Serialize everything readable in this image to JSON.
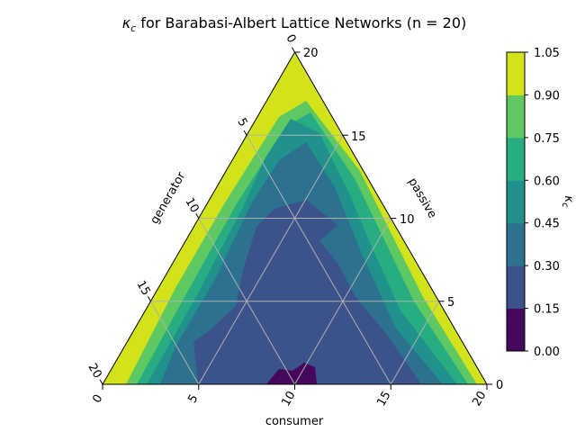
{
  "chart_data": {
    "type": "ternary-contour",
    "title": "κc for Barabasi-Albert Lattice Networks (n = 20)",
    "title_kappa": "κ",
    "title_sub": "c",
    "title_rest": " for Barabasi-Albert Lattice Networks (n = 20)",
    "n": 20,
    "axes": {
      "bottom": {
        "label": "consumer",
        "ticks": [
          "0",
          "5",
          "10",
          "15",
          "20"
        ]
      },
      "right": {
        "label": "passive",
        "ticks": [
          "0",
          "5",
          "10",
          "15",
          "20"
        ]
      },
      "left": {
        "label": "generator",
        "ticks": [
          "0",
          "5",
          "10",
          "15",
          "20"
        ]
      }
    },
    "grid": true,
    "colorbar": {
      "label": "κc",
      "label_kappa": "κ",
      "label_sub": "c",
      "levels": [
        0.0,
        0.15,
        0.3,
        0.45,
        0.6,
        0.75,
        0.9,
        1.05
      ],
      "tick_labels": [
        "0.00",
        "0.15",
        "0.30",
        "0.45",
        "0.60",
        "0.75",
        "0.90",
        "1.05"
      ],
      "colors": [
        "#46085c",
        "#3b528b",
        "#2c718e",
        "#21918c",
        "#27ad81",
        "#5ec962",
        "#d2e21b"
      ]
    },
    "region_levels": [
      {
        "level_index": 6,
        "description": "outer band near edges, κc 0.90–1.05"
      },
      {
        "level_index": 5,
        "description": "thin band, κc 0.75–0.90"
      },
      {
        "level_index": 4,
        "description": "band, κc 0.60–0.75"
      },
      {
        "level_index": 3,
        "description": "band, κc 0.45–0.60"
      },
      {
        "level_index": 2,
        "description": "band, κc 0.30–0.45"
      },
      {
        "level_index": 1,
        "description": "interior, κc 0.15–0.30"
      },
      {
        "level_index": 0,
        "description": "small patch near consumer ≈ 10, κc 0.00–0.15"
      }
    ]
  }
}
